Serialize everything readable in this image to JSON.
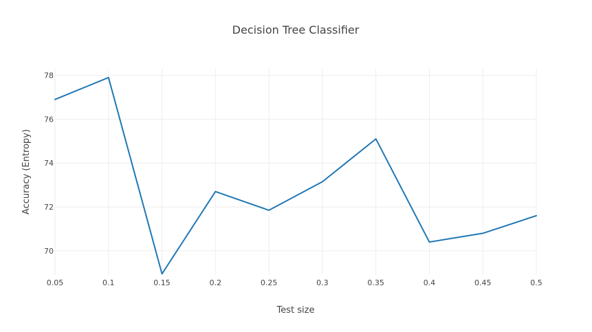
{
  "chart_data": {
    "type": "line",
    "title": "Decision Tree Classifier",
    "xlabel": "Test size",
    "ylabel": "Accuracy (Entropy)",
    "x": [
      0.05,
      0.1,
      0.15,
      0.2,
      0.25,
      0.3,
      0.35,
      0.4,
      0.45,
      0.5
    ],
    "x_ticks": [
      "0.05",
      "0.1",
      "0.15",
      "0.2",
      "0.25",
      "0.3",
      "0.35",
      "0.4",
      "0.45",
      "0.5"
    ],
    "y_ticks": [
      "70",
      "72",
      "74",
      "76",
      "78"
    ],
    "xlim": [
      0.05,
      0.5
    ],
    "ylim": [
      68.9,
      78.3
    ],
    "grid": true,
    "legend": "none",
    "series": [
      {
        "color": "#1f77b4",
        "values": [
          76.9,
          77.9,
          68.95,
          72.7,
          71.85,
          73.15,
          75.1,
          70.4,
          70.8,
          71.6
        ]
      }
    ]
  }
}
